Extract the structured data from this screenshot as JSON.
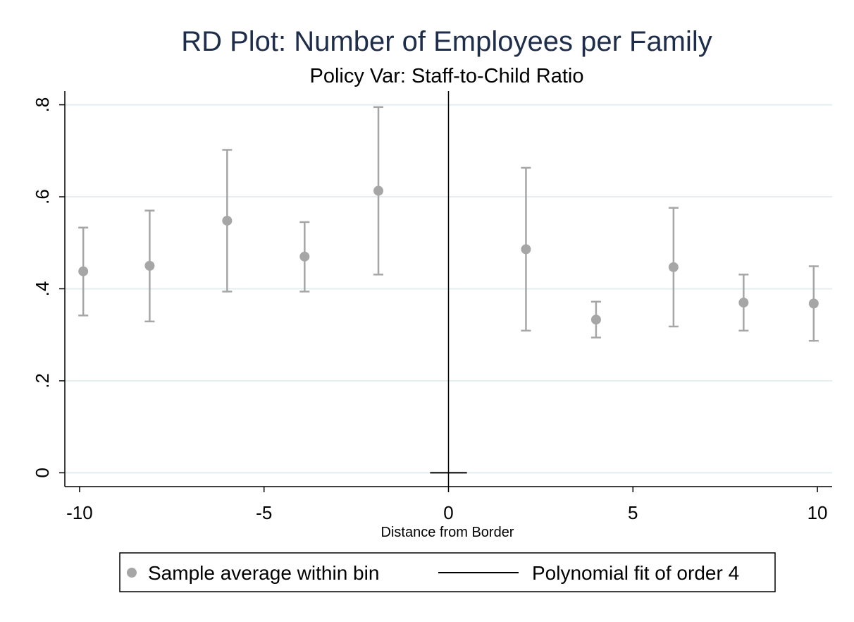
{
  "chart_data": {
    "type": "scatter",
    "title": "RD Plot: Number of Employees per Family",
    "subtitle": "Policy Var: Staff-to-Child Ratio",
    "xlabel": "Distance from Border",
    "ylabel": "",
    "xlim": [
      -10.4,
      10.4
    ],
    "ylim": [
      -0.03,
      0.83
    ],
    "x_ticks": [
      -10,
      -5,
      0,
      5,
      10
    ],
    "x_tick_labels": [
      "-10",
      "-5",
      "0",
      "5",
      "10"
    ],
    "y_ticks": [
      0,
      0.2,
      0.4,
      0.6,
      0.8
    ],
    "y_tick_labels": [
      "0",
      ".2",
      ".4",
      ".6",
      ".8"
    ],
    "grid": true,
    "cutoff": 0,
    "series": [
      {
        "name": "Sample average within bin",
        "color": "#a6a6a6",
        "points": [
          {
            "x": -9.9,
            "y": 0.438,
            "lo": 0.342,
            "hi": 0.533
          },
          {
            "x": -8.1,
            "y": 0.45,
            "lo": 0.329,
            "hi": 0.57
          },
          {
            "x": -6.0,
            "y": 0.548,
            "lo": 0.394,
            "hi": 0.702
          },
          {
            "x": -3.9,
            "y": 0.47,
            "lo": 0.394,
            "hi": 0.545
          },
          {
            "x": -1.9,
            "y": 0.613,
            "lo": 0.431,
            "hi": 0.795
          },
          {
            "x": 2.1,
            "y": 0.486,
            "lo": 0.309,
            "hi": 0.663
          },
          {
            "x": 4.0,
            "y": 0.333,
            "lo": 0.294,
            "hi": 0.372
          },
          {
            "x": 6.1,
            "y": 0.447,
            "lo": 0.318,
            "hi": 0.576
          },
          {
            "x": 8.0,
            "y": 0.37,
            "lo": 0.309,
            "hi": 0.431
          },
          {
            "x": 9.9,
            "y": 0.368,
            "lo": 0.287,
            "hi": 0.449
          }
        ]
      },
      {
        "name": "Polynomial fit of order 4",
        "color": "#000000",
        "values": [
          {
            "x": -0.5,
            "y": 0
          },
          {
            "x": 0.5,
            "y": 0
          }
        ]
      }
    ],
    "legend": {
      "position": "bottom",
      "items": [
        "Sample average within bin",
        "Polynomial fit of order 4"
      ]
    }
  }
}
